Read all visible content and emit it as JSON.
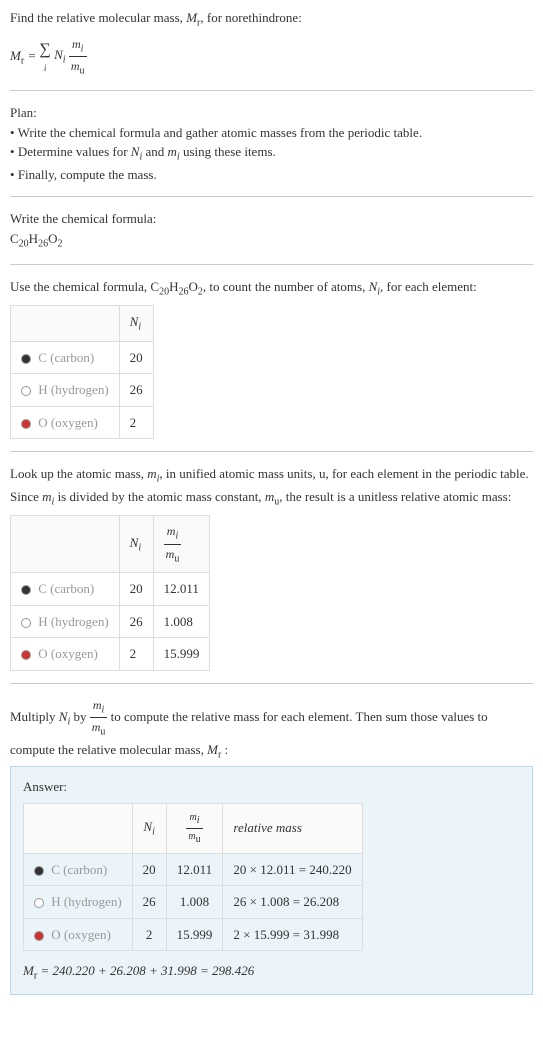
{
  "intro": {
    "line1": "Find the relative molecular mass, M_r, for norethindrone:",
    "eq_lhs": "M_r = ",
    "eq_frac_num": "m_i",
    "eq_frac_den": "m_u"
  },
  "plan": {
    "heading": "Plan:",
    "items": [
      "Write the chemical formula and gather atomic masses from the periodic table.",
      "Determine values for N_i and m_i using these items.",
      "Finally, compute the mass."
    ]
  },
  "step_formula": {
    "text": "Write the chemical formula:",
    "formula": "C_20 H_26 O_2"
  },
  "step_count": {
    "text_a": "Use the chemical formula, ",
    "text_b": ", to count the number of atoms, N_i, for each element:",
    "formula": "C_20 H_26 O_2",
    "header_Ni": "N_i",
    "rows": [
      {
        "dot": "#333333",
        "elem": "C",
        "elem_name": "(carbon)",
        "Ni": "20"
      },
      {
        "dot": "#ffffff",
        "elem": "H",
        "elem_name": "(hydrogen)",
        "Ni": "26"
      },
      {
        "dot": "#cc3333",
        "elem": "O",
        "elem_name": "(oxygen)",
        "Ni": "2"
      }
    ]
  },
  "step_mass": {
    "text": "Look up the atomic mass, m_i, in unified atomic mass units, u, for each element in the periodic table. Since m_i is divided by the atomic mass constant, m_u, the result is a unitless relative atomic mass:",
    "header_Ni": "N_i",
    "header_frac_num": "m_i",
    "header_frac_den": "m_u",
    "rows": [
      {
        "dot": "#333333",
        "elem": "C",
        "elem_name": "(carbon)",
        "Ni": "20",
        "mass": "12.011"
      },
      {
        "dot": "#ffffff",
        "elem": "H",
        "elem_name": "(hydrogen)",
        "Ni": "26",
        "mass": "1.008"
      },
      {
        "dot": "#cc3333",
        "elem": "O",
        "elem_name": "(oxygen)",
        "Ni": "2",
        "mass": "15.999"
      }
    ]
  },
  "step_multiply": {
    "text_a": "Multiply N_i by ",
    "text_b": " to compute the relative mass for each element. Then sum those values to compute the relative molecular mass, M_r :",
    "frac_num": "m_i",
    "frac_den": "m_u"
  },
  "answer": {
    "label": "Answer:",
    "header_Ni": "N_i",
    "header_frac_num": "m_i",
    "header_frac_den": "m_u",
    "header_relmass": "relative mass",
    "rows": [
      {
        "dot": "#333333",
        "elem": "C",
        "elem_name": "(carbon)",
        "Ni": "20",
        "mass": "12.011",
        "rel": "20 × 12.011 = 240.220"
      },
      {
        "dot": "#ffffff",
        "elem": "H",
        "elem_name": "(hydrogen)",
        "Ni": "26",
        "mass": "1.008",
        "rel": "26 × 1.008 = 26.208"
      },
      {
        "dot": "#cc3333",
        "elem": "O",
        "elem_name": "(oxygen)",
        "Ni": "2",
        "mass": "15.999",
        "rel": "2 × 15.999 = 31.998"
      }
    ],
    "final": "M_r = 240.220 + 26.208 + 31.998 = 298.426"
  },
  "colors": {
    "answer_bg": "#eaf4f9",
    "answer_border": "#b8d8e8",
    "divider": "#cccccc",
    "table_border": "#dddddd",
    "elem_text": "#999999"
  }
}
